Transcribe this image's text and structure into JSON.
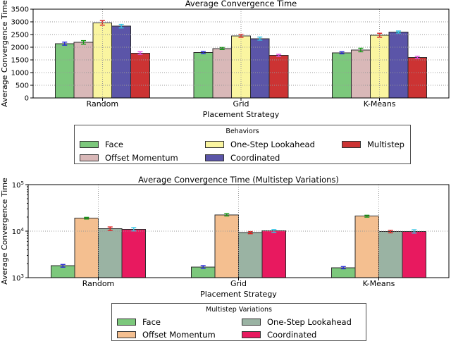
{
  "figure": {
    "background": "#ffffff",
    "text_color": "#000000",
    "grid_color": "#999999",
    "bar_edge_color": "#2e2e2e"
  },
  "chart_data": [
    {
      "type": "bar",
      "title": "Average Convergence Time",
      "xlabel": "Placement Strategy",
      "ylabel": "Average Convergence Time",
      "scale": "linear",
      "ylim": [
        0,
        3500
      ],
      "yticks": [
        0,
        500,
        1000,
        1500,
        2000,
        2500,
        3000,
        3500
      ],
      "categories": [
        "Random",
        "Grid",
        "K-Means"
      ],
      "grid": true,
      "legend": {
        "title": "Behaviors",
        "position": "below",
        "columns": 3
      },
      "series": [
        {
          "name": "Face",
          "color": "#7cc87c",
          "error_color": "#2b2bd5",
          "values": [
            2140,
            1790,
            1780
          ],
          "errors": [
            60,
            40,
            40
          ]
        },
        {
          "name": "Offset Momentum",
          "color": "#d9b8b8",
          "error_color": "#1a9a1a",
          "values": [
            2190,
            1950,
            1890
          ],
          "errors": [
            70,
            40,
            70
          ]
        },
        {
          "name": "One-Step Lookahead",
          "color": "#faf5a0",
          "error_color": "#e02020",
          "values": [
            2960,
            2450,
            2470
          ],
          "errors": [
            90,
            60,
            80
          ]
        },
        {
          "name": "Coordinated",
          "color": "#5b55a8",
          "error_color": "#35c5e5",
          "values": [
            2830,
            2340,
            2600
          ],
          "errors": [
            70,
            60,
            40
          ]
        },
        {
          "name": "Multistep",
          "color": "#cc3333",
          "error_color": "#e050e0",
          "values": [
            1770,
            1680,
            1600
          ],
          "errors": [
            50,
            40,
            40
          ]
        }
      ]
    },
    {
      "type": "bar",
      "title": "Average Convergence Time (Multistep Variations)",
      "xlabel": "Placement Strategy",
      "ylabel": "Average Convergence Time",
      "scale": "log",
      "ylim": [
        1000,
        100000
      ],
      "yticks": [
        1000,
        10000,
        100000
      ],
      "ytick_labels": [
        "10^3",
        "10^4",
        "10^5"
      ],
      "categories": [
        "Random",
        "Grid",
        "K-Means"
      ],
      "grid": true,
      "legend": {
        "title": "Multistep Variations",
        "position": "below",
        "columns": 2
      },
      "series": [
        {
          "name": "Face",
          "color": "#7cc87c",
          "error_color": "#2b2bd5",
          "values": [
            1800,
            1700,
            1640
          ],
          "errors": [
            120,
            110,
            90
          ]
        },
        {
          "name": "Offset Momentum",
          "color": "#f4bf90",
          "error_color": "#1a9a1a",
          "values": [
            19000,
            22500,
            21000
          ],
          "errors": [
            800,
            1300,
            1000
          ]
        },
        {
          "name": "One-Step Lookahead",
          "color": "#9ab3a3",
          "error_color": "#e02020",
          "values": [
            11300,
            9300,
            9800
          ],
          "errors": [
            1000,
            500,
            600
          ]
        },
        {
          "name": "Coordinated",
          "color": "#e8195f",
          "error_color": "#35c5e5",
          "values": [
            11000,
            10100,
            9900
          ],
          "errors": [
            900,
            700,
            800
          ]
        }
      ]
    }
  ]
}
